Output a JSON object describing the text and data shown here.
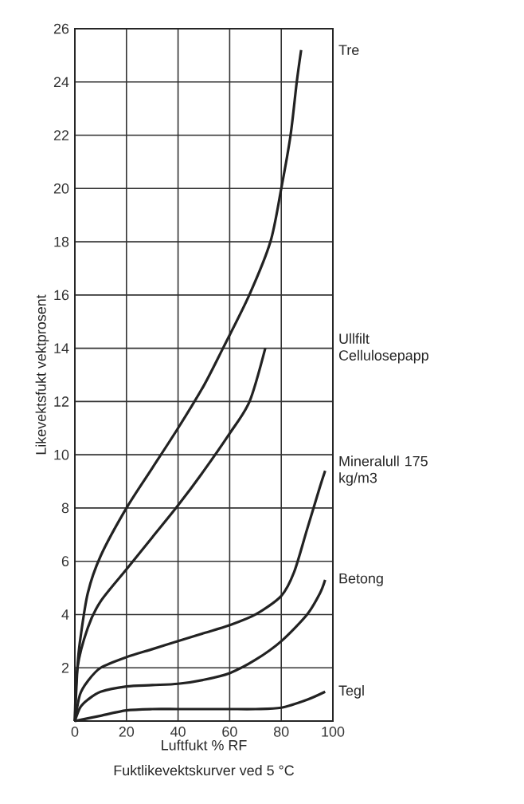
{
  "chart_data": {
    "type": "line",
    "xlabel": "Luftfukt % RF",
    "ylabel": "Likevektsfukt vektprosent",
    "annotations": [
      "Fuktlikevektskurver ved 5 °C"
    ],
    "xlim": [
      0,
      100
    ],
    "ylim": [
      0,
      26
    ],
    "xticks": [
      0,
      20,
      40,
      60,
      80,
      100
    ],
    "yticks": [
      {
        "value": 0,
        "label": null
      },
      2,
      4,
      6,
      8,
      10,
      12,
      14,
      16,
      18,
      20,
      22,
      24,
      26
    ],
    "grid": true,
    "legend": false,
    "marker": "none",
    "line_style": "solid",
    "series": [
      {
        "name": "Tre",
        "color": "#222222",
        "x": [
          0,
          1,
          2,
          5,
          10,
          20,
          30,
          40,
          50,
          57.4,
          67.6,
          75.8,
          80,
          83.6,
          86,
          87.7
        ],
        "values": [
          0,
          2,
          3,
          4.8,
          6.2,
          8,
          9.5,
          11,
          12.6,
          14,
          16,
          18,
          20,
          22,
          24,
          25.2
        ]
      },
      {
        "name": "Ullfilt Cellulosepapp",
        "color": "#222222",
        "x": [
          0,
          1,
          5,
          10,
          20,
          30,
          40,
          50,
          60,
          67.7,
          73.8
        ],
        "values": [
          0,
          2,
          3.5,
          4.5,
          5.7,
          6.9,
          8.1,
          9.4,
          10.8,
          12,
          14
        ]
      },
      {
        "name": "Mineralull 175 kg/m3",
        "color": "#222222",
        "x": [
          0,
          2,
          5,
          10,
          20,
          30,
          40,
          50,
          60,
          70,
          80,
          85,
          90,
          95,
          97
        ],
        "values": [
          0,
          1,
          1.5,
          2,
          2.4,
          2.7,
          3,
          3.3,
          3.6,
          4,
          4.7,
          5.6,
          7.2,
          8.8,
          9.4
        ]
      },
      {
        "name": "Betong",
        "color": "#222222",
        "x": [
          0,
          2,
          5,
          10,
          20,
          30,
          40,
          50,
          60,
          70,
          80,
          90,
          95,
          97
        ],
        "values": [
          0,
          0.5,
          0.8,
          1.1,
          1.3,
          1.35,
          1.4,
          1.55,
          1.8,
          2.3,
          3,
          4,
          4.8,
          5.3
        ]
      },
      {
        "name": "Tegl",
        "color": "#222222",
        "x": [
          0,
          5,
          10,
          20,
          30,
          40,
          50,
          60,
          70,
          80,
          90,
          97
        ],
        "values": [
          0,
          0.1,
          0.2,
          0.4,
          0.45,
          0.45,
          0.45,
          0.45,
          0.45,
          0.5,
          0.8,
          1.1
        ]
      }
    ]
  }
}
